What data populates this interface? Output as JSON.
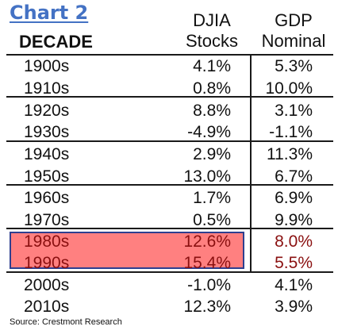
{
  "chart_data": {
    "type": "table",
    "title": "Chart 2",
    "columns": [
      {
        "label": "DECADE"
      },
      {
        "label_line1": "DJIA",
        "label_line2": "Stocks"
      },
      {
        "label_line1": "GDP",
        "label_line2": "Nominal"
      }
    ],
    "rows": [
      {
        "decade": "1900s",
        "djia": "4.1%",
        "gdp": "5.3%"
      },
      {
        "decade": "1910s",
        "djia": "0.8%",
        "gdp": "10.0%"
      },
      {
        "decade": "1920s",
        "djia": "8.8%",
        "gdp": "3.1%"
      },
      {
        "decade": "1930s",
        "djia": "-4.9%",
        "gdp": "-1.1%"
      },
      {
        "decade": "1940s",
        "djia": "2.9%",
        "gdp": "11.3%"
      },
      {
        "decade": "1950s",
        "djia": "13.0%",
        "gdp": "6.7%"
      },
      {
        "decade": "1960s",
        "djia": "1.7%",
        "gdp": "6.9%"
      },
      {
        "decade": "1970s",
        "djia": "0.5%",
        "gdp": "9.9%"
      },
      {
        "decade": "1980s",
        "djia": "12.6%",
        "gdp": "8.0%"
      },
      {
        "decade": "1990s",
        "djia": "15.4%",
        "gdp": "5.5%"
      },
      {
        "decade": "2000s",
        "djia": "-1.0%",
        "gdp": "4.1%"
      },
      {
        "decade": "2010s",
        "djia": "12.3%",
        "gdp": "3.9%"
      }
    ],
    "highlighted_decades": [
      "1980s",
      "1990s"
    ],
    "highlight_color": "#ff8080",
    "highlight_border_color": "#2f3f8f",
    "source": "Source: Crestmont Research"
  },
  "colors": {
    "title": "#4472c4",
    "text": "#111111",
    "highlight_text": "#8a1010"
  }
}
